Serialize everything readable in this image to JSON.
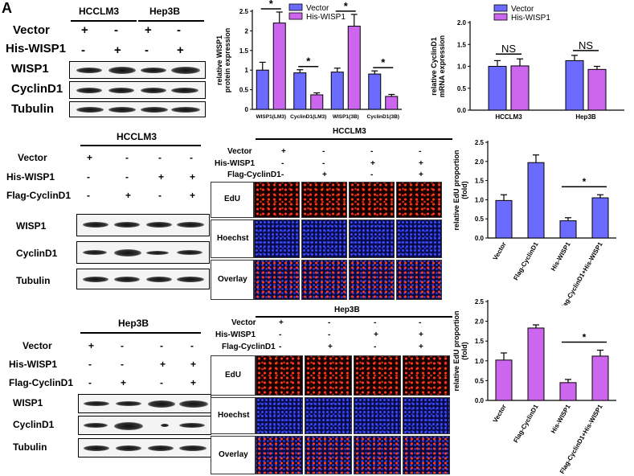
{
  "panel_label": "A",
  "blotA": {
    "groups": [
      "HCCLM3",
      "Hep3B"
    ],
    "conditions": [
      {
        "label": "Vector",
        "signs": [
          "+",
          "-",
          "+",
          "-"
        ]
      },
      {
        "label": "His-WISP1",
        "signs": [
          "-",
          "+",
          "-",
          "+"
        ]
      }
    ],
    "rows": [
      "WISP1",
      "CyclinD1",
      "Tubulin"
    ]
  },
  "blotB": {
    "title": "HCCLM3",
    "conditions": [
      {
        "label": "Vector",
        "signs": [
          "+",
          "-",
          "-",
          "-"
        ]
      },
      {
        "label": "His-WISP1",
        "signs": [
          "-",
          "-",
          "+",
          "+"
        ]
      },
      {
        "label": "Flag-CyclinD1",
        "signs": [
          "-",
          "+",
          "-",
          "+"
        ]
      }
    ],
    "rows": [
      "WISP1",
      "CyclinD1",
      "Tubulin"
    ]
  },
  "blotC": {
    "title": "Hep3B",
    "conditions": [
      {
        "label": "Vector",
        "signs": [
          "+",
          "-",
          "-",
          "-"
        ]
      },
      {
        "label": "His-WISP1",
        "signs": [
          "-",
          "-",
          "+",
          "+"
        ]
      },
      {
        "label": "Flag-CyclinD1",
        "signs": [
          "-",
          "+",
          "-",
          "+"
        ]
      }
    ],
    "rows": [
      "WISP1",
      "CyclinD1",
      "Tubulin"
    ]
  },
  "imagingB": {
    "title": "HCCLM3",
    "conditions": [
      {
        "label": "Vector",
        "signs": [
          "+",
          "-",
          "-",
          "-"
        ]
      },
      {
        "label": "His-WISP1",
        "signs": [
          "-",
          "-",
          "+",
          "+"
        ]
      },
      {
        "label": "Flag-CyclinD1",
        "signs": [
          "-",
          "+",
          "-",
          "+"
        ]
      }
    ],
    "rows": [
      "EdU",
      "Hoechst",
      "Overlay"
    ]
  },
  "imagingC": {
    "title": "Hep3B",
    "conditions": [
      {
        "label": "Vector",
        "signs": [
          "+",
          "-",
          "-",
          "-"
        ]
      },
      {
        "label": "His-WISP1",
        "signs": [
          "-",
          "-",
          "+",
          "+"
        ]
      },
      {
        "label": "Flag-CyclinD1",
        "signs": [
          "-",
          "+",
          "-",
          "+"
        ]
      }
    ],
    "rows": [
      "EdU",
      "Hoechst",
      "Overlay"
    ]
  },
  "chart_data": [
    {
      "id": "wisp1_protein",
      "type": "bar",
      "ylabel": "relative WISP1\nprotein expression",
      "ylim": [
        0,
        2.5
      ],
      "yticks": [
        0,
        0.5,
        1.0,
        1.5,
        2.0,
        2.5
      ],
      "legend": [
        "Vector",
        "His-WISP1"
      ],
      "categories": [
        "WISP1(LM3)",
        "CyclinD1(LM3)",
        "WISP1(3B)",
        "CyclinD1(3B)"
      ],
      "series": [
        {
          "name": "Vector",
          "color": "#6b6bff",
          "values": [
            1.0,
            0.93,
            0.95,
            0.9
          ],
          "errors": [
            0.2,
            0.08,
            0.1,
            0.08
          ]
        },
        {
          "name": "His-WISP1",
          "color": "#cc66ee",
          "values": [
            2.2,
            0.37,
            2.12,
            0.33
          ],
          "errors": [
            0.28,
            0.05,
            0.3,
            0.05
          ]
        }
      ],
      "significance": [
        "*",
        "*",
        "*",
        "*"
      ]
    },
    {
      "id": "cyclind1_mrna",
      "type": "bar",
      "ylabel": "relative CyclinD1\nmRNA expression",
      "ylim": [
        0,
        2.0
      ],
      "yticks": [
        0.0,
        0.5,
        1.0,
        1.5,
        2.0
      ],
      "legend": [
        "Vector",
        "His-WISP1"
      ],
      "categories": [
        "HCCLM3",
        "Hep3B"
      ],
      "series": [
        {
          "name": "Vector",
          "color": "#6b6bff",
          "values": [
            1.0,
            1.13
          ],
          "errors": [
            0.13,
            0.12
          ]
        },
        {
          "name": "His-WISP1",
          "color": "#cc66ee",
          "values": [
            1.01,
            0.93
          ],
          "errors": [
            0.16,
            0.07
          ]
        }
      ],
      "significance": [
        "NS",
        "NS"
      ]
    },
    {
      "id": "edu_hcclm3",
      "type": "bar",
      "ylabel": "relative EdU proportion\n(fold)",
      "ylim": [
        0,
        2.5
      ],
      "yticks": [
        0.0,
        0.5,
        1.0,
        1.5,
        2.0,
        2.5
      ],
      "categories": [
        "Vector",
        "Flag-CyclinD1",
        "His-WISP1",
        "Flag-CyclinD1+His-WISP1"
      ],
      "series": [
        {
          "name": "EdU",
          "color": "#6b6bff",
          "values": [
            0.98,
            1.97,
            0.45,
            1.05
          ],
          "errors": [
            0.15,
            0.2,
            0.08,
            0.08
          ]
        }
      ],
      "significance": [
        "*"
      ]
    },
    {
      "id": "edu_hep3b",
      "type": "bar",
      "ylabel": "relative EdU proportion\n(fold)",
      "ylim": [
        0,
        2.5
      ],
      "yticks": [
        0.0,
        0.5,
        1.0,
        1.5,
        2.0,
        2.5
      ],
      "categories": [
        "Vector",
        "Flag-CyclinD1",
        "His-WISP1",
        "Flag-CyclinD1+His-WISP1"
      ],
      "series": [
        {
          "name": "EdU",
          "color": "#cc66ee",
          "values": [
            1.02,
            1.83,
            0.45,
            1.12
          ],
          "errors": [
            0.18,
            0.08,
            0.08,
            0.15
          ]
        }
      ],
      "significance": [
        "*"
      ]
    }
  ]
}
